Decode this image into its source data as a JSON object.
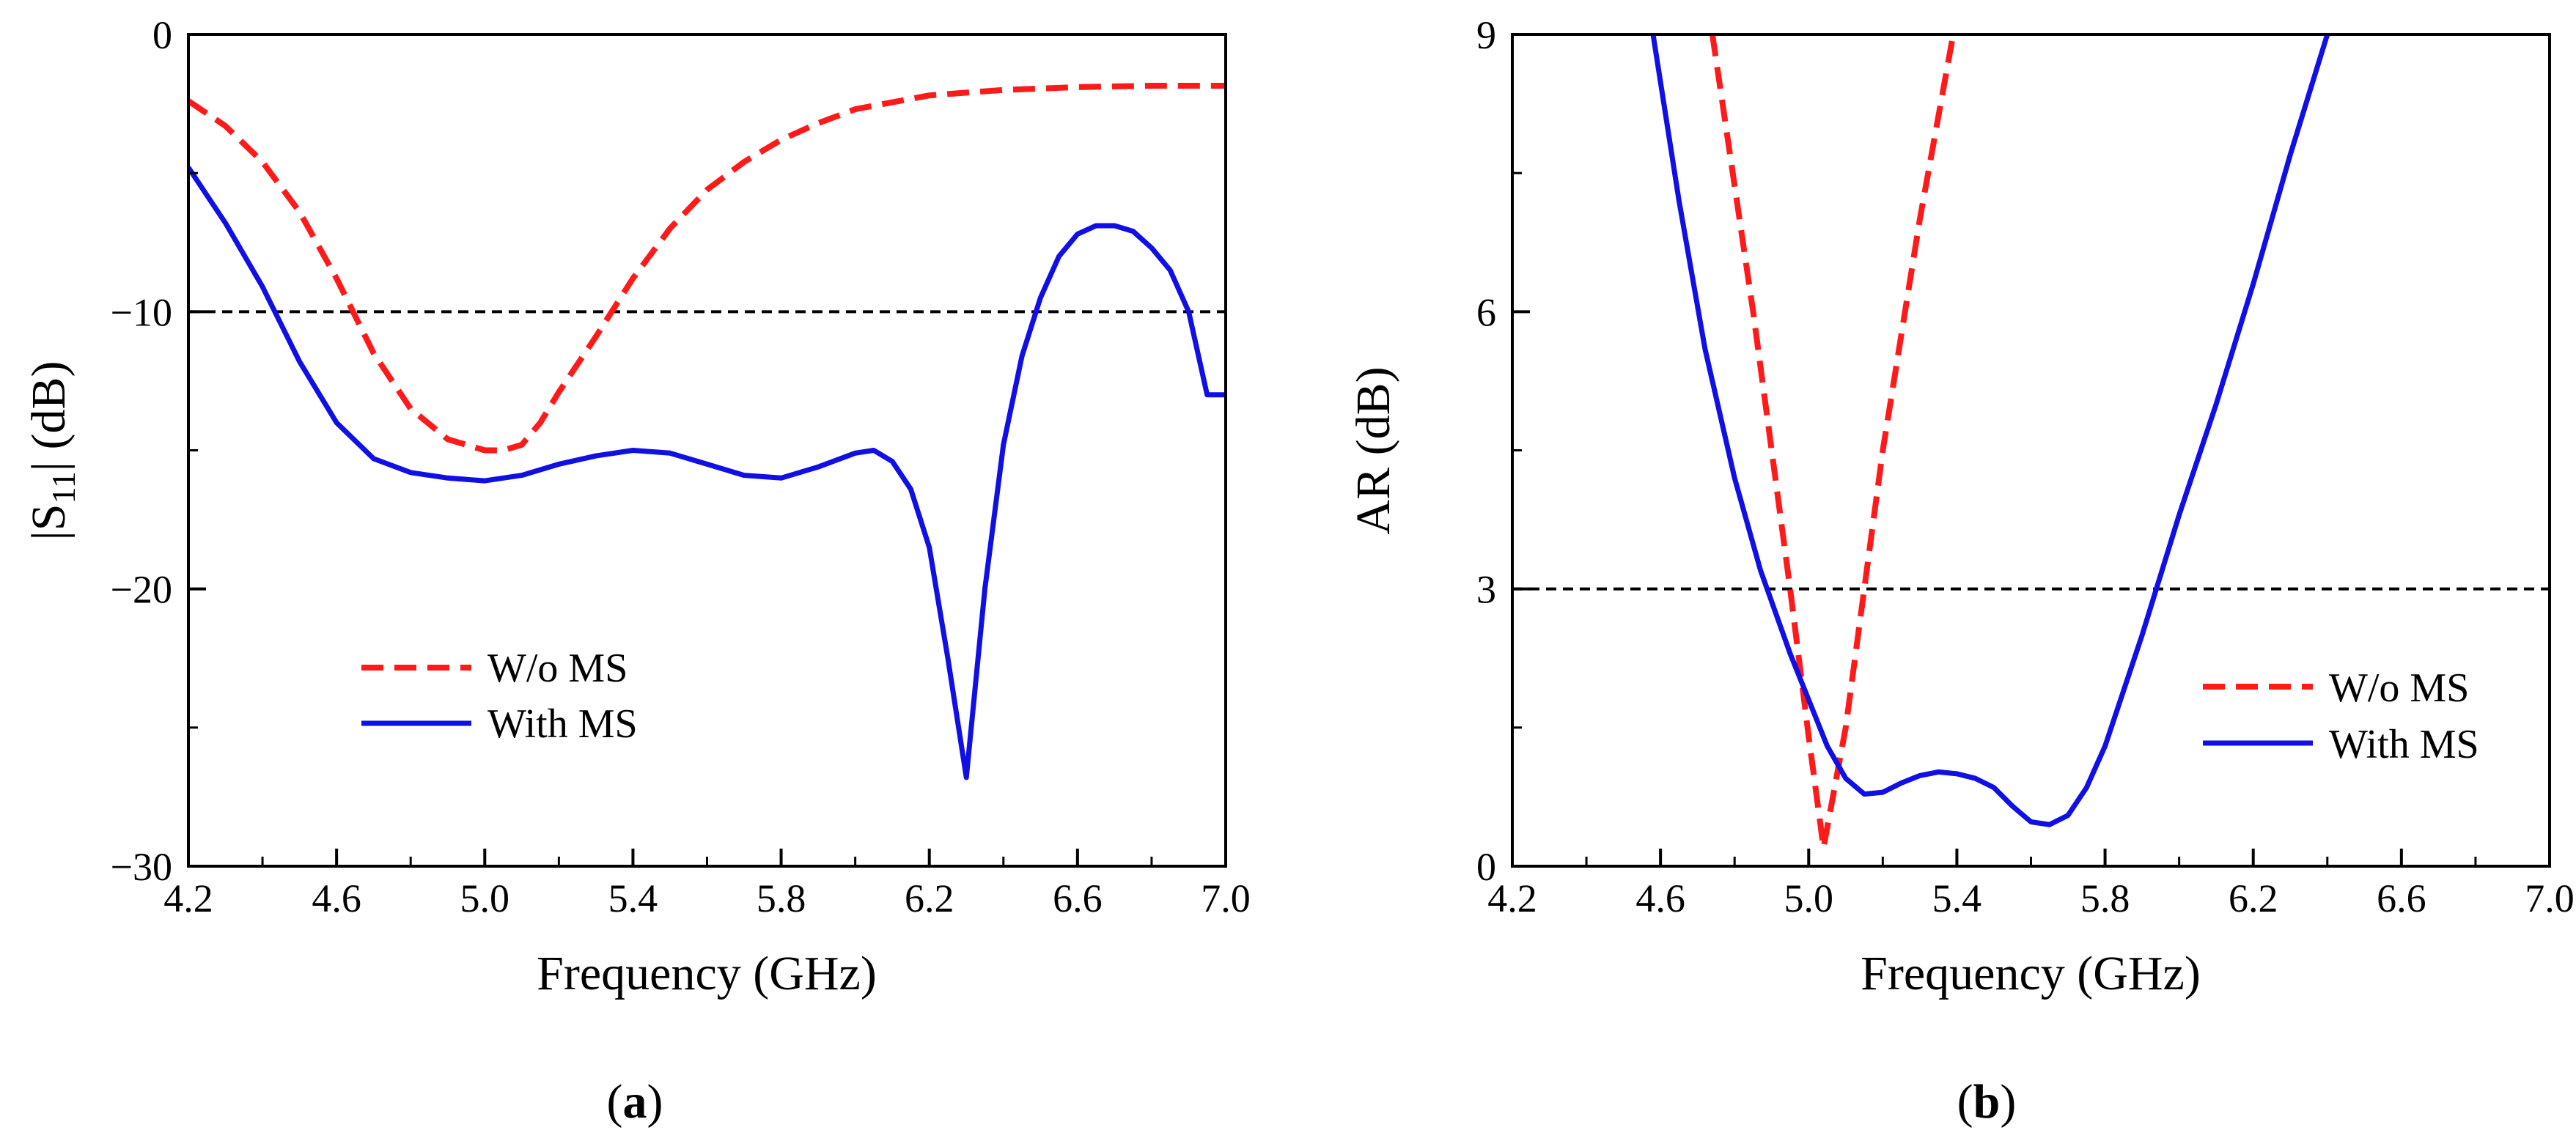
{
  "chart_data": [
    {
      "type": "line",
      "panel": "a",
      "caption_open": "(",
      "caption_letter": "a",
      "caption_close": ")",
      "xlabel": "Frequency (GHz)",
      "ylabel_prefix": "|S",
      "ylabel_sub": "11",
      "ylabel_suffix": "| (dB)",
      "xlim": [
        4.2,
        7.0
      ],
      "ylim": [
        -30,
        0
      ],
      "xticks": [
        4.2,
        4.6,
        5.0,
        5.4,
        5.8,
        6.2,
        6.6,
        7.0
      ],
      "xtick_labels": [
        "4.2",
        "4.6",
        "5.0",
        "5.4",
        "5.8",
        "6.2",
        "6.6",
        "7.0"
      ],
      "yticks": [
        -30,
        -20,
        -10,
        0
      ],
      "ytick_labels": [
        "−30",
        "−20",
        "−10",
        "0"
      ],
      "reference_line": {
        "y": -10,
        "style": "dashed",
        "color": "#000000"
      },
      "legend_position": "lower-left",
      "series": [
        {
          "name": "W/o MS",
          "color": "#ff1a1a",
          "style": "dashed",
          "x": [
            4.2,
            4.3,
            4.4,
            4.5,
            4.6,
            4.7,
            4.8,
            4.9,
            5.0,
            5.05,
            5.1,
            5.15,
            5.2,
            5.3,
            5.4,
            5.5,
            5.6,
            5.7,
            5.8,
            5.9,
            6.0,
            6.2,
            6.4,
            6.6,
            6.8,
            7.0
          ],
          "values": [
            -2.4,
            -3.3,
            -4.6,
            -6.4,
            -8.8,
            -11.5,
            -13.5,
            -14.6,
            -15.0,
            -15.0,
            -14.8,
            -14.0,
            -12.9,
            -10.9,
            -8.8,
            -7.0,
            -5.6,
            -4.6,
            -3.8,
            -3.2,
            -2.7,
            -2.2,
            -2.0,
            -1.9,
            -1.85,
            -1.85
          ]
        },
        {
          "name": "With MS",
          "color": "#0f0fe6",
          "style": "solid",
          "x": [
            4.2,
            4.3,
            4.4,
            4.5,
            4.6,
            4.7,
            4.8,
            4.9,
            5.0,
            5.1,
            5.2,
            5.3,
            5.4,
            5.5,
            5.6,
            5.7,
            5.8,
            5.9,
            6.0,
            6.05,
            6.1,
            6.15,
            6.2,
            6.25,
            6.3,
            6.35,
            6.4,
            6.45,
            6.5,
            6.55,
            6.6,
            6.65,
            6.7,
            6.75,
            6.8,
            6.85,
            6.9,
            6.95,
            7.0
          ],
          "values": [
            -4.8,
            -6.8,
            -9.1,
            -11.8,
            -14.0,
            -15.3,
            -15.8,
            -16.0,
            -16.1,
            -15.9,
            -15.5,
            -15.2,
            -15.0,
            -15.1,
            -15.5,
            -15.9,
            -16.0,
            -15.6,
            -15.1,
            -15.0,
            -15.4,
            -16.4,
            -18.5,
            -22.5,
            -26.8,
            -20.0,
            -14.8,
            -11.6,
            -9.5,
            -8.0,
            -7.2,
            -6.9,
            -6.9,
            -7.1,
            -7.7,
            -8.5,
            -10.0,
            -13.0,
            -13.0
          ]
        }
      ]
    },
    {
      "type": "line",
      "panel": "b",
      "caption_open": "(",
      "caption_letter": "b",
      "caption_close": ")",
      "xlabel": "Frequency (GHz)",
      "ylabel": "AR (dB)",
      "xlim": [
        4.2,
        7.0
      ],
      "ylim": [
        0,
        9
      ],
      "xticks": [
        4.2,
        4.6,
        5.0,
        5.4,
        5.8,
        6.2,
        6.6,
        7.0
      ],
      "xtick_labels": [
        "4.2",
        "4.6",
        "5.0",
        "5.4",
        "5.8",
        "6.2",
        "6.6",
        "7.0"
      ],
      "yticks": [
        0,
        3,
        6,
        9
      ],
      "ytick_labels": [
        "0",
        "3",
        "6",
        "9"
      ],
      "reference_line": {
        "y": 3,
        "style": "dashed",
        "color": "#000000"
      },
      "legend_position": "lower-right",
      "series": [
        {
          "name": "W/o MS",
          "color": "#ff1a1a",
          "style": "dashed",
          "x": [
            4.74,
            4.85,
            4.95,
            5.0,
            5.04,
            5.1,
            5.2,
            5.3,
            5.39
          ],
          "values": [
            9.0,
            6.0,
            3.0,
            1.4,
            0.2,
            1.5,
            4.5,
            7.0,
            9.0
          ],
          "clip": true
        },
        {
          "name": "With MS",
          "color": "#0f0fe6",
          "style": "solid",
          "x": [
            4.58,
            4.65,
            4.72,
            4.8,
            4.87,
            4.95,
            5.0,
            5.05,
            5.1,
            5.15,
            5.2,
            5.25,
            5.3,
            5.35,
            5.4,
            5.45,
            5.5,
            5.55,
            5.6,
            5.65,
            5.7,
            5.75,
            5.8,
            5.9,
            6.0,
            6.1,
            6.2,
            6.3,
            6.4
          ],
          "values": [
            9.0,
            7.2,
            5.6,
            4.2,
            3.2,
            2.3,
            1.8,
            1.3,
            0.95,
            0.78,
            0.8,
            0.9,
            0.98,
            1.02,
            1.0,
            0.95,
            0.85,
            0.65,
            0.48,
            0.45,
            0.55,
            0.85,
            1.3,
            2.5,
            3.8,
            5.0,
            6.3,
            7.7,
            9.0
          ]
        }
      ]
    }
  ]
}
